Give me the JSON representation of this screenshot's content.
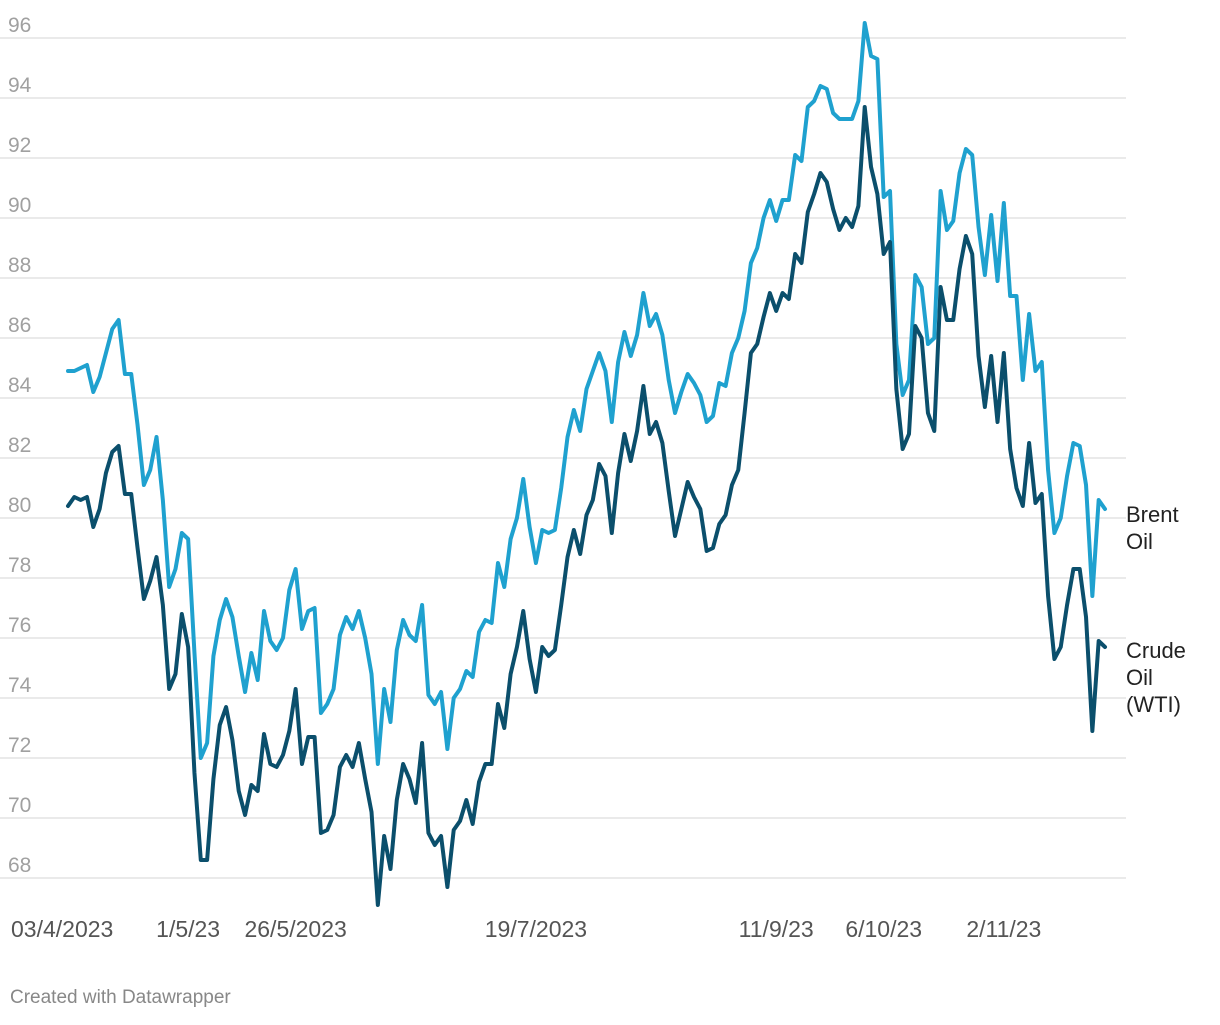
{
  "chart_data": {
    "type": "line",
    "title": "",
    "xlabel": "",
    "ylabel": "",
    "ylim": [
      67,
      96.8
    ],
    "grid": true,
    "legend": "inline labels at right end of lines",
    "y_ticks": [
      68,
      70,
      72,
      74,
      76,
      78,
      80,
      82,
      84,
      86,
      88,
      90,
      92,
      94,
      96
    ],
    "x_ticks": [
      {
        "label": "03/4/2023",
        "index": 0
      },
      {
        "label": "1/5/23",
        "index": 19
      },
      {
        "label": "26/5/2023",
        "index": 36
      },
      {
        "label": "19/7/2023",
        "index": 74
      },
      {
        "label": "11/9/23",
        "index": 112
      },
      {
        "label": "6/10/23",
        "index": 129
      },
      {
        "label": "2/11/23",
        "index": 148
      }
    ],
    "series": [
      {
        "name": "Brent Oil",
        "label_lines": [
          "Brent",
          "Oil"
        ],
        "color": "#1fa1cf",
        "values": [
          84.9,
          84.9,
          85.0,
          85.1,
          84.2,
          84.7,
          85.5,
          86.3,
          86.6,
          84.8,
          84.8,
          83.1,
          81.1,
          81.6,
          82.7,
          80.6,
          77.7,
          78.3,
          79.5,
          79.3,
          75.5,
          72.0,
          72.5,
          75.4,
          76.6,
          77.3,
          76.7,
          75.4,
          74.2,
          75.5,
          74.6,
          76.9,
          75.9,
          75.6,
          76.0,
          77.6,
          78.3,
          76.3,
          76.9,
          77.0,
          73.5,
          73.8,
          74.3,
          76.1,
          76.7,
          76.3,
          76.9,
          76.0,
          74.8,
          71.8,
          74.3,
          73.2,
          75.6,
          76.6,
          76.1,
          75.9,
          77.1,
          74.1,
          73.8,
          74.2,
          72.3,
          74.0,
          74.3,
          74.9,
          74.7,
          76.2,
          76.6,
          76.5,
          78.5,
          77.7,
          79.3,
          80.0,
          81.3,
          79.7,
          78.5,
          79.6,
          79.5,
          79.6,
          81.0,
          82.7,
          83.6,
          82.9,
          84.3,
          84.9,
          85.5,
          84.9,
          83.2,
          85.2,
          86.2,
          85.4,
          86.1,
          87.5,
          86.4,
          86.8,
          86.1,
          84.6,
          83.5,
          84.2,
          84.8,
          84.5,
          84.1,
          83.2,
          83.4,
          84.5,
          84.4,
          85.5,
          86.0,
          86.9,
          88.5,
          89.0,
          90.0,
          90.6,
          89.9,
          90.6,
          90.6,
          92.1,
          91.9,
          93.7,
          93.9,
          94.4,
          94.3,
          93.5,
          93.3,
          93.3,
          93.3,
          93.9,
          96.5,
          95.4,
          95.3,
          90.7,
          90.9,
          85.8,
          84.1,
          84.6,
          88.1,
          87.7,
          85.8,
          86.0,
          90.9,
          89.6,
          89.9,
          91.5,
          92.3,
          92.1,
          89.7,
          88.1,
          90.1,
          87.9,
          90.5,
          87.4,
          87.4,
          84.6,
          86.8,
          84.9,
          85.2,
          81.6,
          79.5,
          80.0,
          81.4,
          82.5,
          82.4,
          81.1,
          77.4,
          80.6,
          80.3
        ]
      },
      {
        "name": "Crude Oil (WTI)",
        "label_lines": [
          "Crude",
          "Oil",
          "(WTI)"
        ],
        "color": "#0b4f6c",
        "values": [
          80.4,
          80.7,
          80.6,
          80.7,
          79.7,
          80.3,
          81.5,
          82.2,
          82.4,
          80.8,
          80.8,
          79.0,
          77.3,
          77.9,
          78.7,
          77.1,
          74.3,
          74.8,
          76.8,
          75.7,
          71.5,
          68.6,
          68.6,
          71.3,
          73.1,
          73.7,
          72.6,
          70.9,
          70.1,
          71.1,
          70.9,
          72.8,
          71.8,
          71.7,
          72.1,
          72.9,
          74.3,
          71.8,
          72.7,
          72.7,
          69.5,
          69.6,
          70.1,
          71.7,
          72.1,
          71.7,
          72.5,
          71.3,
          70.2,
          67.1,
          69.4,
          68.3,
          70.6,
          71.8,
          71.3,
          70.5,
          72.5,
          69.5,
          69.1,
          69.4,
          67.7,
          69.6,
          69.9,
          70.6,
          69.8,
          71.2,
          71.8,
          71.8,
          73.8,
          73.0,
          74.8,
          75.7,
          76.9,
          75.3,
          74.2,
          75.7,
          75.4,
          75.6,
          77.1,
          78.7,
          79.6,
          78.8,
          80.1,
          80.6,
          81.8,
          81.4,
          79.5,
          81.5,
          82.8,
          81.9,
          82.9,
          84.4,
          82.8,
          83.2,
          82.5,
          80.9,
          79.4,
          80.3,
          81.2,
          80.7,
          80.3,
          78.9,
          79.0,
          79.8,
          80.1,
          81.1,
          81.6,
          83.5,
          85.5,
          85.8,
          86.7,
          87.5,
          86.9,
          87.5,
          87.3,
          88.8,
          88.5,
          90.2,
          90.8,
          91.5,
          91.2,
          90.3,
          89.6,
          90.0,
          89.7,
          90.4,
          93.7,
          91.7,
          90.8,
          88.8,
          89.2,
          84.3,
          82.3,
          82.8,
          86.4,
          86.0,
          83.5,
          82.9,
          87.7,
          86.6,
          86.6,
          88.3,
          89.4,
          88.8,
          85.4,
          83.7,
          85.4,
          83.2,
          85.5,
          82.3,
          81.0,
          80.4,
          82.5,
          80.5,
          80.8,
          77.4,
          75.3,
          75.7,
          77.1,
          78.3,
          78.3,
          76.7,
          72.9,
          75.9,
          75.7
        ]
      }
    ]
  },
  "footer": {
    "credit": "Created with Datawrapper"
  }
}
